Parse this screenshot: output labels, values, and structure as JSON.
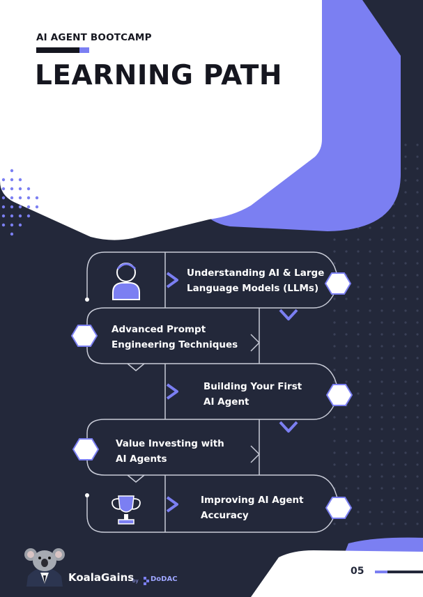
{
  "header": {
    "eyebrow": "AI AGENT BOOTCAMP",
    "title": "LEARNING PATH"
  },
  "path": {
    "steps": [
      {
        "label": "Understanding AI & Large\nLanguage Models (LLMs)",
        "icon": "person-icon"
      },
      {
        "label": "Advanced Prompt\nEngineering Techniques",
        "icon": null
      },
      {
        "label": "Building Your First\nAI Agent",
        "icon": null
      },
      {
        "label": "Value Investing with\nAI Agents",
        "icon": null
      },
      {
        "label": "Improving AI Agent\nAccuracy",
        "icon": "trophy-icon"
      }
    ]
  },
  "footer": {
    "brand": "KoalaGains",
    "by": "by",
    "company": "DoDAC",
    "page_number": "05",
    "mascot": "koala-mascot-icon"
  },
  "colors": {
    "background": "#23283a",
    "accent": "#7b7ff2",
    "white": "#ffffff",
    "title": "#15161f"
  }
}
